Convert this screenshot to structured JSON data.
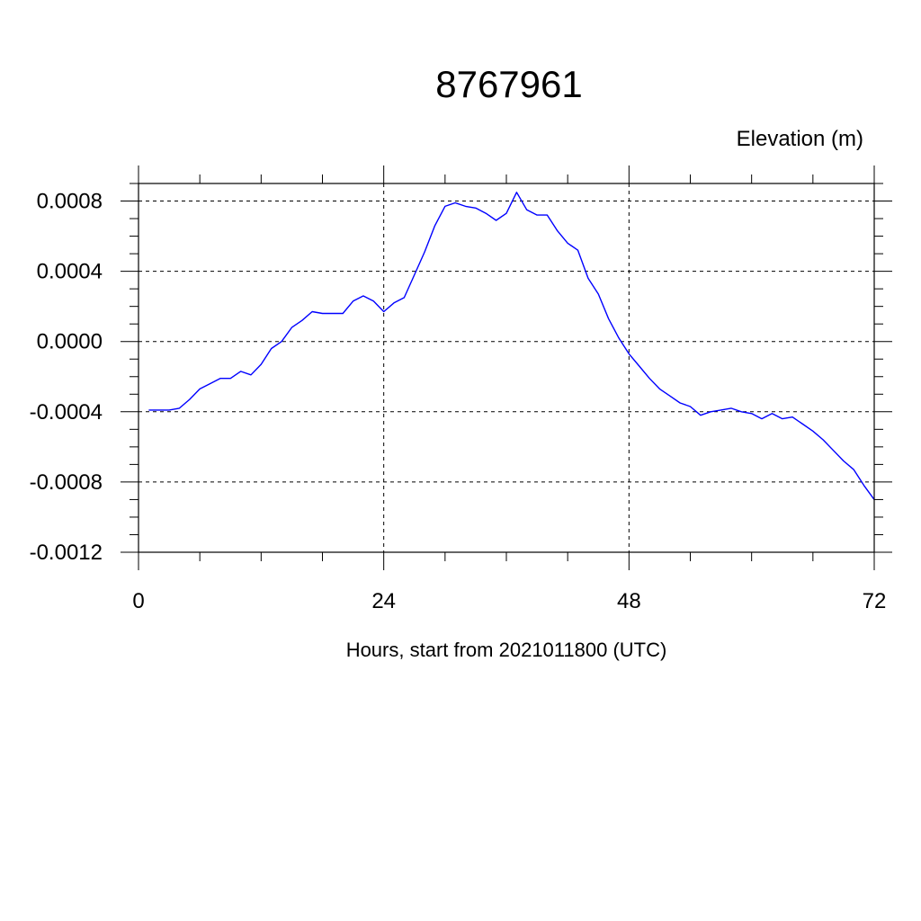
{
  "chart_data": {
    "type": "line",
    "title": "8767961",
    "units_label": "Elevation (m)",
    "xlabel": "Hours, start from 2021011800 (UTC)",
    "ylabel": "",
    "xlim": [
      0,
      72
    ],
    "ylim": [
      -0.0012,
      0.0009
    ],
    "x_ticks": [
      0,
      24,
      48,
      72
    ],
    "x_tick_labels": [
      "0",
      "24",
      "48",
      "72"
    ],
    "y_ticks": [
      -0.0012,
      -0.0008,
      -0.0004,
      0.0,
      0.0004,
      0.0008
    ],
    "y_tick_labels": [
      "-0.0012",
      "-0.0008",
      "-0.0004",
      "0.0000",
      "0.0004",
      "0.0008"
    ],
    "grid": "dashed at major ticks",
    "legend": "none",
    "line_color": "#0000ff",
    "series": [
      {
        "x": [
          1,
          2,
          3,
          4,
          5,
          6,
          7,
          8,
          9,
          10,
          11,
          12,
          13,
          14,
          15,
          16,
          17,
          18,
          19,
          20,
          21,
          22,
          23,
          24,
          25,
          26,
          27,
          28,
          29,
          30,
          31,
          32,
          33,
          34,
          35,
          36,
          37,
          38,
          39,
          40,
          41,
          42,
          43,
          44,
          45,
          46,
          47,
          48,
          49,
          50,
          51,
          52,
          53,
          54,
          55,
          56,
          57,
          58,
          59,
          60,
          61,
          62,
          63,
          64,
          65,
          66,
          67,
          68,
          69,
          70,
          71,
          72
        ],
        "values": [
          -0.00039,
          -0.00039,
          -0.00039,
          -0.00038,
          -0.00033,
          -0.00027,
          -0.00024,
          -0.00021,
          -0.00021,
          -0.00017,
          -0.00019,
          -0.00013,
          -4e-05,
          0.0,
          8e-05,
          0.00012,
          0.00017,
          0.00016,
          0.00016,
          0.00016,
          0.00023,
          0.00026,
          0.00023,
          0.00017,
          0.00022,
          0.00025,
          0.00038,
          0.00051,
          0.00066,
          0.00077,
          0.00079,
          0.00077,
          0.00076,
          0.00073,
          0.00069,
          0.00073,
          0.00085,
          0.00075,
          0.00072,
          0.00072,
          0.00063,
          0.00056,
          0.00052,
          0.00036,
          0.00027,
          0.00013,
          2e-05,
          -7e-05,
          -0.00014,
          -0.00021,
          -0.00027,
          -0.00031,
          -0.00035,
          -0.00037,
          -0.00042,
          -0.0004,
          -0.00039,
          -0.00038,
          -0.0004,
          -0.00041,
          -0.00044,
          -0.00041,
          -0.00044,
          -0.00043,
          -0.00047,
          -0.00051,
          -0.00056,
          -0.00062,
          -0.00068,
          -0.00073,
          -0.00082,
          -0.0009
        ]
      }
    ]
  }
}
